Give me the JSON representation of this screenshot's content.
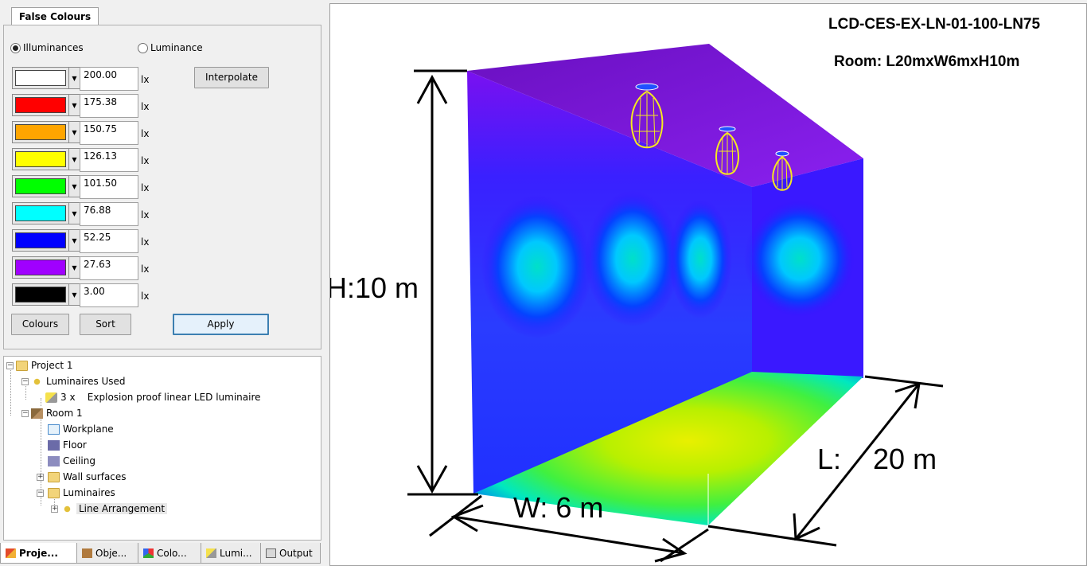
{
  "false_colours": {
    "tab_label": "False Colours",
    "mode_illuminances": "Illuminances",
    "mode_luminance": "Luminance",
    "interpolate_label": "Interpolate",
    "unit": "lx",
    "rows": [
      {
        "color": "#ffffff",
        "value": "200.00"
      },
      {
        "color": "#ff0000",
        "value": "175.38"
      },
      {
        "color": "#ffa500",
        "value": "150.75"
      },
      {
        "color": "#ffff00",
        "value": "126.13"
      },
      {
        "color": "#00ff00",
        "value": "101.50"
      },
      {
        "color": "#00ffff",
        "value": "76.88"
      },
      {
        "color": "#0000ff",
        "value": "52.25"
      },
      {
        "color": "#a000ff",
        "value": "27.63"
      },
      {
        "color": "#000000",
        "value": "3.00"
      }
    ],
    "colours_label": "Colours",
    "sort_label": "Sort",
    "apply_label": "Apply"
  },
  "tree": {
    "project": "Project 1",
    "luminaires_used": "Luminaires Used",
    "luminaire_entry": "3 x    Explosion proof linear LED luminaire",
    "room": "Room 1",
    "workplane": "Workplane",
    "floor": "Floor",
    "ceiling": "Ceiling",
    "wall_surfaces": "Wall surfaces",
    "luminaires": "Luminaires",
    "line_arrangement": "Line Arrangement"
  },
  "bottom_tabs": [
    "Proje...",
    "Obje...",
    "Colo...",
    "Lumi...",
    "Output"
  ],
  "viewport": {
    "title_line1": "LCD-CES-EX-LN-01-100-LN75",
    "title_line2": "Room: L20mxW6mxH10m",
    "height_label": "H:10 m",
    "width_label": "W: 6 m",
    "length_label": "L:    20 m"
  }
}
